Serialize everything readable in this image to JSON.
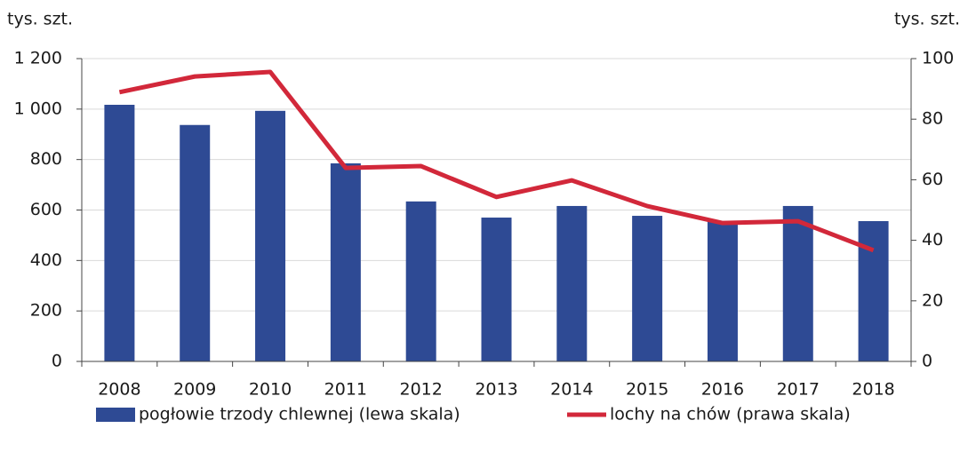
{
  "chart_data": {
    "type": "bar",
    "y_label": "tys. szt.",
    "y2_label": "tys. szt.",
    "categories": [
      "2008",
      "2009",
      "2010",
      "2011",
      "2012",
      "2013",
      "2014",
      "2015",
      "2016",
      "2017",
      "2018"
    ],
    "series": [
      {
        "name": "pogłowie trzody chlewnej (lewa skala)",
        "type": "bar",
        "color": "#2e4a94",
        "values": [
          1017,
          937,
          993,
          785,
          634,
          570,
          616,
          577,
          556,
          616,
          556
        ]
      },
      {
        "name": "lochy na chów (prawa skala)",
        "type": "line",
        "axis": "y2",
        "color": "#d2283a",
        "values": [
          88.9,
          94.1,
          95.6,
          63.9,
          64.5,
          54.3,
          59.8,
          51.3,
          45.7,
          46.3,
          36.7
        ]
      }
    ],
    "ylim": [
      0,
      1200
    ],
    "yticks": [
      0,
      200,
      400,
      600,
      800,
      {
        "value": 1000,
        "label": "1 000"
      },
      {
        "value": 1200,
        "label": "1 200"
      }
    ],
    "y2lim": [
      0,
      100
    ],
    "y2ticks": [
      0,
      20,
      40,
      60,
      80,
      100
    ],
    "grid": true,
    "legend": "bottom"
  }
}
